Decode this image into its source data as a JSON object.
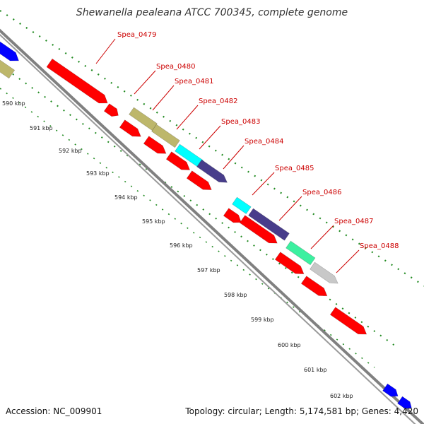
{
  "header": {
    "title": "Shewanella pealeana ATCC 700345, complete genome"
  },
  "footer": {
    "accession": "Accession: NC_009901",
    "stats": "Topology: circular; Length: 5,174,581 bp; Genes: 4,420"
  },
  "colors": {
    "backbone": "#808080",
    "cds": "#ff0000",
    "tan": "#bdb76b",
    "cyan": "#00ffff",
    "navy": "#483d8b",
    "mint": "#3cf0a0",
    "grey": "#c8c8c8",
    "blue": "#0000ff",
    "label": "#cc0000",
    "tick": "#228b22"
  },
  "scale_labels": [
    "590 kbp",
    "591 kbp",
    "592 kbp",
    "593 kbp",
    "594 kbp",
    "595 kbp",
    "596 kbp",
    "597 kbp",
    "598 kbp",
    "599 kbp",
    "600 kbp",
    "601 kbp",
    "602 kbp"
  ],
  "gene_labels": [
    "Spea_0479",
    "Spea_0480",
    "Spea_0481",
    "Spea_0482",
    "Spea_0483",
    "Spea_0484",
    "Spea_0485",
    "Spea_0486",
    "Spea_0487",
    "Spea_0488"
  ]
}
